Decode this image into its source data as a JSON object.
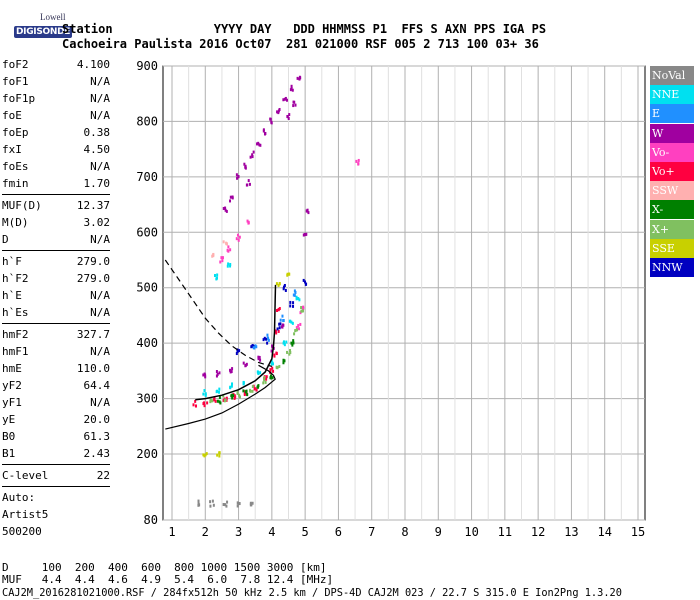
{
  "logo": {
    "top": "Lowell",
    "bottom": "DIGISONDE"
  },
  "header": {
    "line1": "Station              YYYY DAY   DDD HHMMSS P1  FFS S AXN PPS IGA PS",
    "line2": "Cachoeira Paulista 2016 Oct07  281 021000 RSF 005 2 713 100 03+ 36"
  },
  "params": {
    "group1": [
      {
        "k": "foF2",
        "v": "4.100"
      },
      {
        "k": "foF1",
        "v": "N/A"
      },
      {
        "k": "foF1p",
        "v": "N/A"
      },
      {
        "k": "foE",
        "v": "N/A"
      },
      {
        "k": "foEp",
        "v": "0.38"
      },
      {
        "k": "fxI",
        "v": "4.50"
      },
      {
        "k": "foEs",
        "v": "N/A"
      },
      {
        "k": "fmin",
        "v": "1.70"
      }
    ],
    "group2": [
      {
        "k": "MUF(D)",
        "v": "12.37"
      },
      {
        "k": "M(D)",
        "v": "3.02"
      },
      {
        "k": "D",
        "v": "N/A"
      }
    ],
    "group3": [
      {
        "k": "h`F",
        "v": "279.0"
      },
      {
        "k": "h`F2",
        "v": "279.0"
      },
      {
        "k": "h`E",
        "v": "N/A"
      },
      {
        "k": "h`Es",
        "v": "N/A"
      }
    ],
    "group4": [
      {
        "k": "hmF2",
        "v": "327.7"
      },
      {
        "k": "hmF1",
        "v": "N/A"
      },
      {
        "k": "hmE",
        "v": "110.0"
      },
      {
        "k": "yF2",
        "v": "64.4"
      },
      {
        "k": "yF1",
        "v": "N/A"
      },
      {
        "k": "yE",
        "v": "20.0"
      },
      {
        "k": "B0",
        "v": "61.3"
      },
      {
        "k": "B1",
        "v": "2.43"
      }
    ],
    "group5": [
      {
        "k": "C-level",
        "v": "22"
      }
    ],
    "auto": [
      "Auto:",
      "Artist5",
      "500200"
    ]
  },
  "legend": [
    {
      "label": "NoVal",
      "color": "#888888"
    },
    {
      "label": "NNE",
      "color": "#00e0f0"
    },
    {
      "label": "E",
      "color": "#2090ff"
    },
    {
      "label": "W",
      "color": "#a000a0"
    },
    {
      "label": "Vo-",
      "color": "#ff40c0"
    },
    {
      "label": "Vo+",
      "color": "#ff0040"
    },
    {
      "label": "SSW",
      "color": "#ffb0b0"
    },
    {
      "label": "X-",
      "color": "#008000"
    },
    {
      "label": "X+",
      "color": "#80c060"
    },
    {
      "label": "SSE",
      "color": "#c8d000"
    },
    {
      "label": "NNW",
      "color": "#0000c0"
    }
  ],
  "bottom": {
    "line1": "D     100  200  400  600  800 1000 1500 3000 [km]",
    "line2": "MUF   4.4  4.4  4.6  4.9  5.4  6.0  7.8 12.4 [MHz]",
    "line3": "CAJ2M_2016281021000.RSF / 284fx512h 50 kHz 2.5 km / DPS-4D CAJ2M 023 / 22.7 S 315.0 E Ion2Png 1.3.20"
  },
  "chart_data": {
    "type": "scatter",
    "x_ticks": [
      1,
      2,
      3,
      4,
      5,
      6,
      7,
      8,
      9,
      10,
      11,
      12,
      13,
      14,
      15
    ],
    "y_ticks": [
      80,
      200,
      300,
      400,
      500,
      600,
      700,
      800,
      900
    ],
    "xlim": [
      0.8,
      15.1
    ],
    "ylim": [
      80,
      910
    ],
    "grid": true,
    "trace_curve": [
      [
        1.7,
        298
      ],
      [
        2.0,
        300
      ],
      [
        2.5,
        306
      ],
      [
        3.0,
        316
      ],
      [
        3.5,
        332
      ],
      [
        3.8,
        348
      ],
      [
        4.0,
        372
      ],
      [
        4.05,
        395
      ],
      [
        4.08,
        420
      ],
      [
        4.1,
        480
      ],
      [
        4.11,
        505
      ]
    ],
    "profile_curve": [
      [
        0.8,
        245
      ],
      [
        1.5,
        255
      ],
      [
        2.0,
        263
      ],
      [
        2.5,
        274
      ],
      [
        3.0,
        290
      ],
      [
        3.5,
        308
      ],
      [
        3.8,
        320
      ],
      [
        4.0,
        330
      ],
      [
        4.1,
        335
      ],
      [
        4.05,
        342
      ],
      [
        3.9,
        350
      ],
      [
        3.6,
        360
      ]
    ],
    "dashed_curve": [
      [
        0.8,
        550
      ],
      [
        1.2,
        515
      ],
      [
        1.6,
        480
      ],
      [
        2.0,
        445
      ],
      [
        2.4,
        418
      ],
      [
        2.8,
        395
      ],
      [
        3.2,
        378
      ],
      [
        3.6,
        365
      ],
      [
        4.0,
        358
      ]
    ],
    "points": {
      "W": [
        [
          3.0,
          700
        ],
        [
          3.2,
          720
        ],
        [
          3.4,
          740
        ],
        [
          3.6,
          760
        ],
        [
          3.8,
          780
        ],
        [
          4.0,
          800
        ],
        [
          4.2,
          820
        ],
        [
          4.4,
          840
        ],
        [
          4.6,
          860
        ],
        [
          4.8,
          875
        ],
        [
          4.5,
          810
        ],
        [
          4.7,
          830
        ],
        [
          2.6,
          640
        ],
        [
          2.8,
          660
        ],
        [
          3.3,
          690
        ],
        [
          5.1,
          640
        ],
        [
          5.0,
          600
        ],
        [
          2.0,
          340
        ],
        [
          2.4,
          345
        ],
        [
          2.8,
          350
        ],
        [
          3.2,
          360
        ],
        [
          3.6,
          370
        ],
        [
          4.0,
          390
        ],
        [
          4.3,
          430
        ]
      ],
      "Vo+": [
        [
          1.7,
          290
        ],
        [
          2.0,
          292
        ],
        [
          2.3,
          296
        ],
        [
          2.6,
          300
        ],
        [
          2.9,
          305
        ],
        [
          3.2,
          312
        ],
        [
          3.5,
          320
        ],
        [
          3.8,
          335
        ],
        [
          4.0,
          350
        ],
        [
          4.1,
          380
        ],
        [
          4.15,
          420
        ],
        [
          4.2,
          460
        ]
      ],
      "Vo-": [
        [
          2.5,
          550
        ],
        [
          2.7,
          570
        ],
        [
          3.0,
          590
        ],
        [
          3.3,
          620
        ],
        [
          6.6,
          728
        ],
        [
          4.8,
          430
        ],
        [
          4.9,
          460
        ]
      ],
      "NNE": [
        [
          2.0,
          310
        ],
        [
          2.4,
          315
        ],
        [
          2.8,
          322
        ],
        [
          3.2,
          330
        ],
        [
          3.6,
          345
        ],
        [
          4.0,
          365
        ],
        [
          4.4,
          400
        ],
        [
          4.6,
          440
        ],
        [
          4.8,
          480
        ],
        [
          2.3,
          520
        ],
        [
          2.7,
          540
        ]
      ],
      "X+": [
        [
          2.2,
          295
        ],
        [
          2.6,
          300
        ],
        [
          3.0,
          307
        ],
        [
          3.4,
          318
        ],
        [
          3.8,
          333
        ],
        [
          4.2,
          356
        ],
        [
          4.5,
          385
        ],
        [
          4.7,
          420
        ],
        [
          4.9,
          460
        ]
      ],
      "X-": [
        [
          2.4,
          297
        ],
        [
          2.8,
          303
        ],
        [
          3.2,
          311
        ],
        [
          3.6,
          324
        ],
        [
          4.0,
          341
        ],
        [
          4.4,
          368
        ],
        [
          4.6,
          400
        ]
      ],
      "NNW": [
        [
          3.0,
          385
        ],
        [
          3.4,
          392
        ],
        [
          3.8,
          405
        ],
        [
          4.2,
          430
        ],
        [
          4.6,
          470
        ],
        [
          5.0,
          510
        ],
        [
          4.4,
          500
        ]
      ],
      "E": [
        [
          3.5,
          395
        ],
        [
          3.9,
          410
        ],
        [
          4.3,
          445
        ],
        [
          4.7,
          490
        ]
      ],
      "SSE": [
        [
          4.2,
          505
        ],
        [
          4.5,
          520
        ],
        [
          2.0,
          200
        ],
        [
          2.4,
          200
        ]
      ],
      "SSW": [
        [
          2.2,
          560
        ],
        [
          2.6,
          580
        ]
      ],
      "NoVal": [
        [
          1.8,
          110
        ],
        [
          2.2,
          110
        ],
        [
          2.6,
          110
        ],
        [
          3.0,
          110
        ],
        [
          3.4,
          110
        ]
      ]
    }
  }
}
